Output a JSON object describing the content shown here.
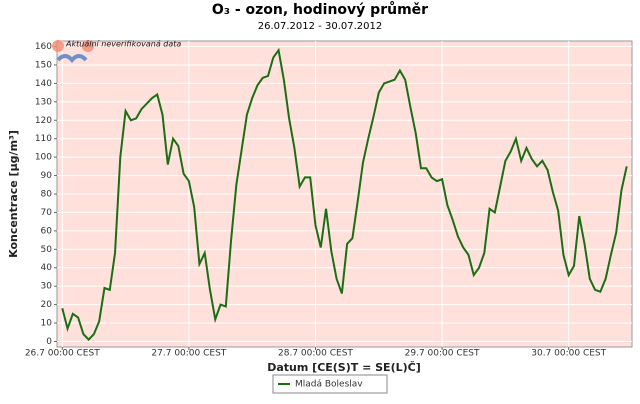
{
  "chart_data": {
    "type": "line",
    "title": "O₃ - ozon, hodinový průměr",
    "subtitle": "26.07.2012 - 30.07.2012",
    "annotation": "Aktuální neverifikovaná data",
    "x_label": "Datum [CE(S)T = SE(L)Č]",
    "y_label": "Koncentrace [µg/m³]",
    "x": [
      0,
      1,
      2,
      3,
      4,
      5,
      6,
      7,
      8,
      9,
      10,
      11,
      12,
      13,
      14,
      15,
      16,
      17,
      18,
      19,
      20,
      21,
      22,
      23,
      24,
      25,
      26,
      27,
      28,
      29,
      30,
      31,
      32,
      33,
      34,
      35,
      36,
      37,
      38,
      39,
      40,
      41,
      42,
      43,
      44,
      45,
      46,
      47,
      48,
      49,
      50,
      51,
      52,
      53,
      54,
      55,
      56,
      57,
      58,
      59,
      60,
      61,
      62,
      63,
      64,
      65,
      66,
      67,
      68,
      69,
      70,
      71,
      72,
      73,
      74,
      75,
      76,
      77,
      78,
      79,
      80,
      81,
      82,
      83,
      84,
      85,
      86,
      87,
      88,
      89,
      90,
      91,
      92,
      93,
      94,
      95,
      96,
      97,
      98,
      99,
      100,
      101,
      102,
      103,
      104,
      105,
      106,
      107
    ],
    "series": [
      {
        "name": "Mladá Boleslav",
        "color": "#1b6e14",
        "values": [
          18,
          7,
          15,
          13,
          4,
          1,
          4,
          11,
          29,
          28,
          48,
          100,
          125,
          120,
          121,
          126,
          129,
          132,
          134,
          123,
          96,
          110,
          106,
          91,
          87,
          73,
          42,
          48,
          28,
          12,
          20,
          19,
          55,
          85,
          104,
          123,
          132,
          139,
          143,
          144,
          154,
          158,
          142,
          121,
          105,
          84,
          89,
          89,
          63,
          51,
          72,
          49,
          34,
          26,
          53,
          56,
          76,
          97,
          110,
          122,
          135,
          140,
          141,
          142,
          147,
          142,
          127,
          113,
          94,
          94,
          89,
          87,
          88,
          74,
          66,
          57,
          51,
          47,
          36,
          40,
          48,
          72,
          70,
          84,
          98,
          103,
          110,
          98,
          105,
          99,
          95,
          98,
          93,
          81,
          71,
          47,
          36,
          41,
          68,
          53,
          34,
          28,
          27,
          34,
          47,
          59,
          82,
          95
        ]
      }
    ],
    "xlim": [
      -1,
      108
    ],
    "xticks": [
      {
        "value": 0,
        "label": "26.7 00:00 CEST"
      },
      {
        "value": 24,
        "label": "27.7 00:00 CEST"
      },
      {
        "value": 48,
        "label": "28.7 00:00 CEST"
      },
      {
        "value": 72,
        "label": "29.7 00:00 CEST"
      },
      {
        "value": 96,
        "label": "30.7 00:00 CEST"
      }
    ],
    "ylim": [
      -3,
      163
    ],
    "yticks": [
      0,
      10,
      20,
      30,
      40,
      50,
      60,
      70,
      80,
      90,
      100,
      110,
      120,
      130,
      140,
      150,
      160
    ],
    "grid": true,
    "background": "#ffe0da",
    "legend": "bottom"
  }
}
